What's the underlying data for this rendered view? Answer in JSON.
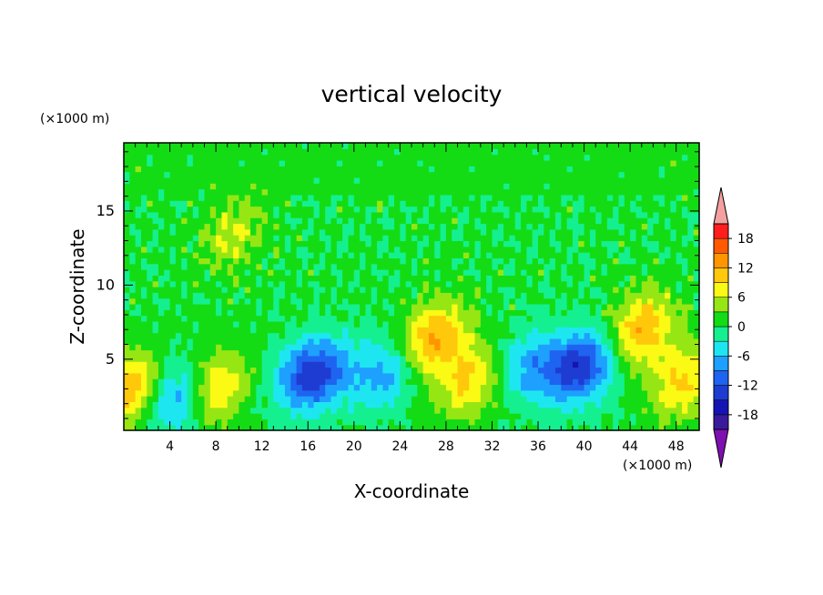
{
  "chart_data": {
    "type": "heatmap",
    "title": "vertical velocity",
    "xlabel": "X-coordinate",
    "ylabel": "Z-coordinate",
    "x_units": "(×1000 m)",
    "y_units": "(×1000 m)",
    "xlim": [
      0,
      50
    ],
    "ylim": [
      0.2,
      19.6
    ],
    "x_ticks": [
      4,
      8,
      12,
      16,
      20,
      24,
      28,
      32,
      36,
      40,
      44,
      48
    ],
    "y_ticks": [
      5,
      10,
      15
    ],
    "colorbar": {
      "levels": [
        -21,
        -18,
        -15,
        -12,
        -9,
        -6,
        -3,
        0,
        3,
        6,
        9,
        12,
        15,
        18,
        21
      ],
      "tick_labels": [
        "18",
        "12",
        "6",
        "0",
        "-6",
        "-12",
        "-18"
      ],
      "tick_values": [
        18,
        12,
        6,
        0,
        -6,
        -12,
        -18
      ],
      "colors": [
        "#7e0fb0",
        "#3a1a9c",
        "#1414b4",
        "#1e3cd2",
        "#1e64f0",
        "#1ea0ff",
        "#1ee6f0",
        "#14f090",
        "#14dc14",
        "#96e614",
        "#fafa14",
        "#ffc80a",
        "#ff9600",
        "#ff5a00",
        "#ff1e1e",
        "#f5a0a0"
      ],
      "extend": "both"
    },
    "features": [
      {
        "x": 0.5,
        "z": 3.0,
        "sign": 1,
        "peak": 11
      },
      {
        "x": 5.0,
        "z": 2.5,
        "sign": -1,
        "peak": 12
      },
      {
        "x": 7.5,
        "z": 3.0,
        "sign": 1,
        "peak": 12
      },
      {
        "x": 9.5,
        "z": 13.5,
        "sign": 1,
        "peak": 6
      },
      {
        "x": 16.5,
        "z": 4.0,
        "sign": -1,
        "peak": 15
      },
      {
        "x": 22.5,
        "z": 4.0,
        "sign": -1,
        "peak": 8
      },
      {
        "x": 27.0,
        "z": 6.5,
        "sign": 1,
        "peak": 12
      },
      {
        "x": 30.0,
        "z": 3.5,
        "sign": 1,
        "peak": 9
      },
      {
        "x": 35.0,
        "z": 4.5,
        "sign": -1,
        "peak": 7
      },
      {
        "x": 39.5,
        "z": 4.5,
        "sign": -1,
        "peak": 15
      },
      {
        "x": 45.0,
        "z": 7.0,
        "sign": 1,
        "peak": 11
      },
      {
        "x": 48.5,
        "z": 3.5,
        "sign": 1,
        "peak": 9
      }
    ]
  }
}
